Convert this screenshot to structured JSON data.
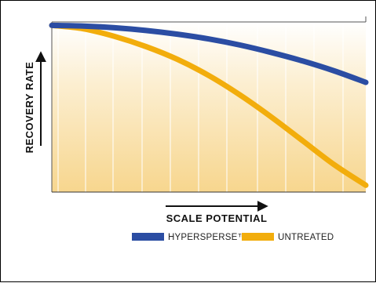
{
  "chart_data": {
    "type": "line",
    "title": "",
    "xlabel": "SCALE POTENTIAL",
    "ylabel": "RECOVERY RATE",
    "xlim": [
      0,
      10
    ],
    "ylim": [
      0,
      10
    ],
    "x_ticks_printed": false,
    "y_ticks_printed": false,
    "grid": "vertical",
    "legend_position": "bottom",
    "series": [
      {
        "name": "HYPERSPERSE™",
        "color": "#2b4da3",
        "x": [
          0,
          1,
          2,
          3,
          4,
          5,
          6,
          7,
          8,
          9,
          10
        ],
        "y": [
          9.8,
          9.76,
          9.66,
          9.5,
          9.28,
          9.0,
          8.64,
          8.2,
          7.7,
          7.12,
          6.45
        ]
      },
      {
        "name": "UNTREATED",
        "color": "#f2ad0c",
        "x": [
          0,
          1,
          2,
          3,
          4,
          5,
          6,
          7,
          8,
          9,
          10
        ],
        "y": [
          9.8,
          9.6,
          9.15,
          8.55,
          7.8,
          6.85,
          5.7,
          4.4,
          3.0,
          1.6,
          0.4
        ]
      }
    ]
  }
}
